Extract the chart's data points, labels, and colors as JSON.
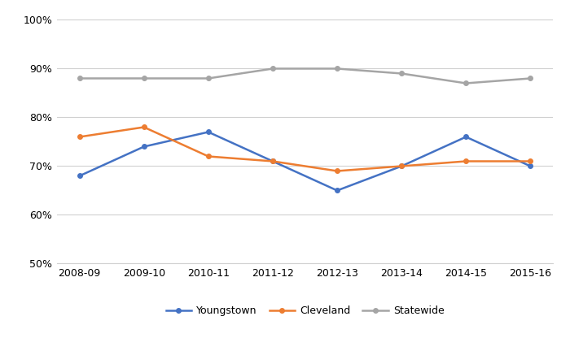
{
  "years": [
    "2008-09",
    "2009-10",
    "2010-11",
    "2011-12",
    "2012-13",
    "2013-14",
    "2014-15",
    "2015-16"
  ],
  "youngstown": [
    0.68,
    0.74,
    0.77,
    0.71,
    0.65,
    0.7,
    0.76,
    0.7
  ],
  "cleveland": [
    0.76,
    0.78,
    0.72,
    0.71,
    0.69,
    0.7,
    0.71,
    0.71
  ],
  "statewide": [
    0.88,
    0.88,
    0.88,
    0.9,
    0.9,
    0.89,
    0.87,
    0.88
  ],
  "youngstown_color": "#4472C4",
  "cleveland_color": "#ED7D31",
  "statewide_color": "#A5A5A5",
  "ylim": [
    0.5,
    1.02
  ],
  "yticks": [
    0.5,
    0.6,
    0.7,
    0.8,
    0.9,
    1.0
  ],
  "ytick_labels": [
    "50%",
    "60%",
    "70%",
    "80%",
    "90%",
    "100%"
  ],
  "legend_labels": [
    "Youngstown",
    "Cleveland",
    "Statewide"
  ],
  "line_width": 1.8,
  "marker": "o",
  "marker_size": 4,
  "background_color": "#ffffff",
  "grid_color": "#d0d0d0"
}
